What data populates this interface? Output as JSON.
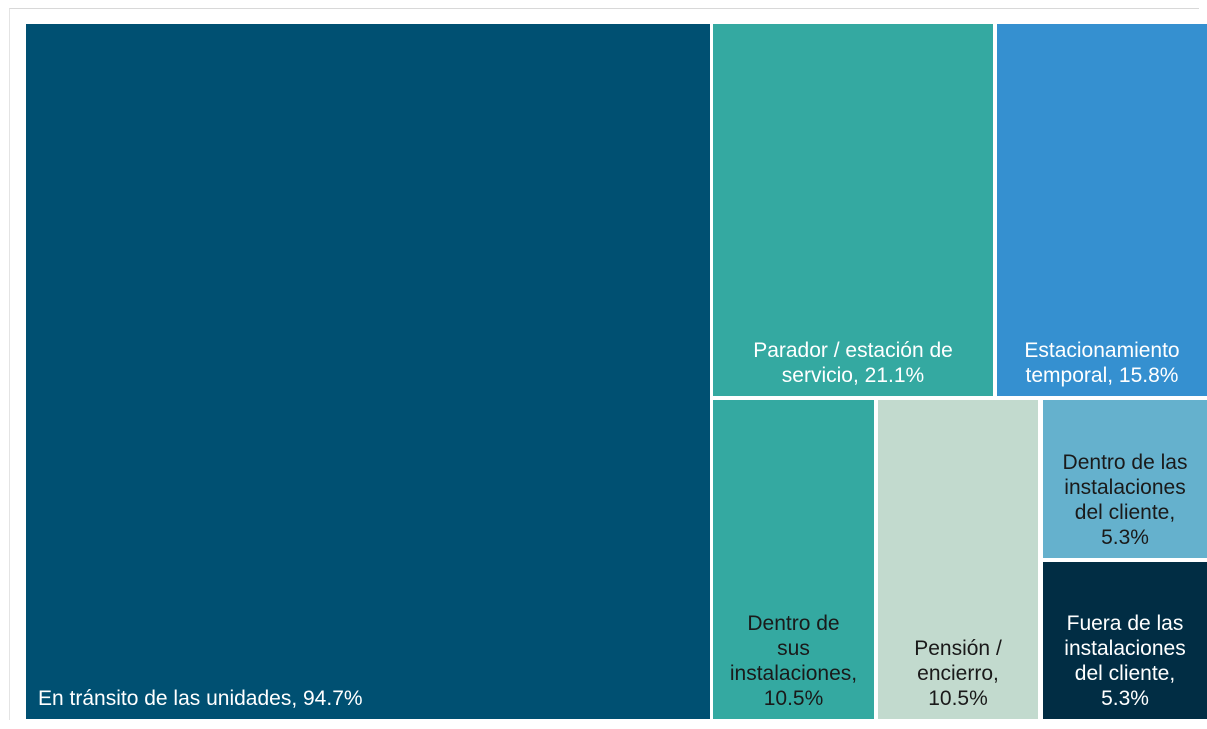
{
  "chart_data": {
    "type": "treemap",
    "items": [
      {
        "label": "En tránsito de las unidades, 94.7%",
        "name": "En tránsito de las unidades",
        "value": 94.7,
        "color": "#005072",
        "text_color": "#ffffff"
      },
      {
        "label": "Parador / estación de\nservicio, 21.1%",
        "name": "Parador / estación de servicio",
        "value": 21.1,
        "color": "#34a9a1",
        "text_color": "#ffffff"
      },
      {
        "label": "Estacionamiento\ntemporal, 15.8%",
        "name": "Estacionamiento temporal",
        "value": 15.8,
        "color": "#3590d0",
        "text_color": "#ffffff"
      },
      {
        "label": "Dentro de\nsus\ninstalaciones,\n10.5%",
        "name": "Dentro de sus instalaciones",
        "value": 10.5,
        "color": "#34a9a1",
        "text_color": "#1a1a1a"
      },
      {
        "label": "Pensión /\nencierro,\n10.5%",
        "name": "Pensión / encierro",
        "value": 10.5,
        "color": "#c2dace",
        "text_color": "#1a1a1a"
      },
      {
        "label": "Dentro de las\ninstalaciones\ndel cliente,\n5.3%",
        "name": "Dentro de las instalaciones del cliente",
        "value": 5.3,
        "color": "#65b1cd",
        "text_color": "#1a1a1a"
      },
      {
        "label": "Fuera de las\ninstalaciones\ndel cliente,\n5.3%",
        "name": "Fuera de las instalaciones del cliente",
        "value": 5.3,
        "color": "#012d44",
        "text_color": "#ffffff"
      }
    ]
  }
}
